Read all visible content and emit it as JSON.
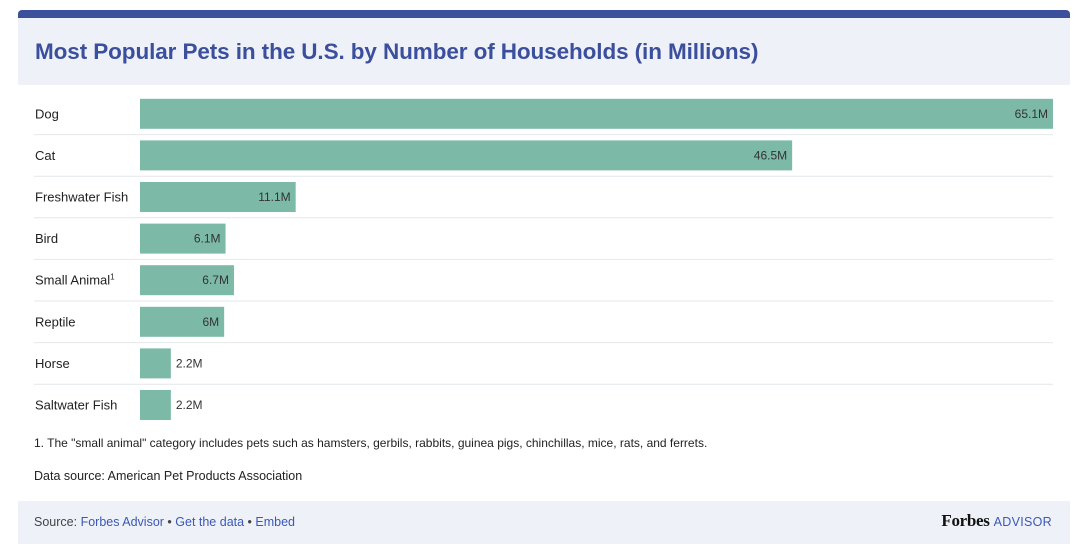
{
  "header": {
    "title": "Most Popular Pets in the U.S. by Number of Households (in Millions)"
  },
  "chart_data": {
    "type": "bar",
    "orientation": "horizontal",
    "title": "Most Popular Pets in the U.S. by Number of Households (in Millions)",
    "categories": [
      "Dog",
      "Cat",
      "Freshwater Fish",
      "Bird",
      "Small Animal",
      "Reptile",
      "Horse",
      "Saltwater Fish"
    ],
    "category_superscripts": [
      "",
      "",
      "",
      "",
      "1",
      "",
      "",
      ""
    ],
    "values": [
      65.1,
      46.5,
      11.1,
      6.1,
      6.7,
      6,
      2.2,
      2.2
    ],
    "value_labels": [
      "65.1M",
      "46.5M",
      "11.1M",
      "6.1M",
      "6.7M",
      "6M",
      "2.2M",
      "2.2M"
    ],
    "xlim": [
      0,
      65.1
    ],
    "grid": false,
    "bar_color": "#7cbaa7"
  },
  "notes": {
    "footnote": "1. The \"small animal\" category includes pets such as hamsters, gerbils, rabbits, guinea pigs, chinchillas, mice, rats, and ferrets.",
    "data_source": "Data source: American Pet Products Association"
  },
  "footer": {
    "source_prefix": "Source: ",
    "source_link": "Forbes Advisor",
    "separator_1": " • ",
    "get_data_link": "Get the data",
    "separator_2": " • ",
    "embed_link": "Embed",
    "brand_name": "Forbes",
    "brand_suffix": "ADVISOR"
  },
  "colors": {
    "accent": "#3b4f9c",
    "header_bg": "#eef2f8",
    "bar": "#7cbaa7",
    "link": "#3b58b5"
  }
}
